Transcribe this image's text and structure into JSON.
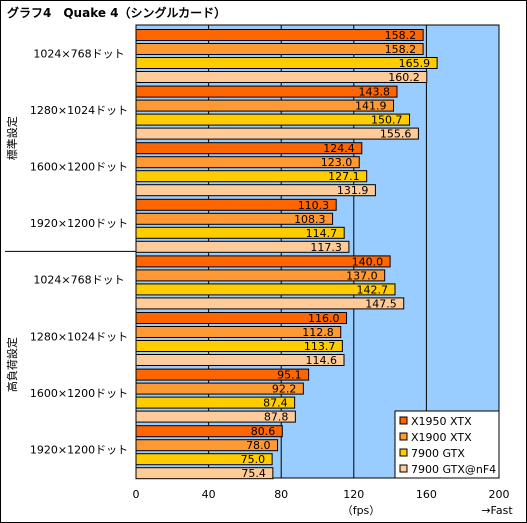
{
  "chart_data": {
    "type": "bar",
    "orientation": "horizontal",
    "title": "グラフ4　Quake 4（シングルカード）",
    "groups": [
      {
        "label": "標準設定",
        "categories": [
          "1024×768ドット",
          "1280×1024ドット",
          "1600×1200ドット",
          "1920×1200ドット"
        ],
        "series_values": [
          [
            158.2,
            158.2,
            165.9,
            160.2
          ],
          [
            143.8,
            141.9,
            150.7,
            155.6
          ],
          [
            124.4,
            123.0,
            127.1,
            131.9
          ],
          [
            110.3,
            108.3,
            114.7,
            117.3
          ]
        ],
        "value_labels": [
          [
            "158.2",
            "158.2",
            "165.9",
            "160.2"
          ],
          [
            "143.8",
            "141.9",
            "150.7",
            "155.6"
          ],
          [
            "124.4",
            "123.0",
            "127.1",
            "131.9"
          ],
          [
            "110.3",
            "108.3",
            "114.7",
            "117.3"
          ]
        ]
      },
      {
        "label": "高負荷設定",
        "categories": [
          "1024×768ドット",
          "1280×1024ドット",
          "1600×1200ドット",
          "1920×1200ドット"
        ],
        "series_values": [
          [
            140.0,
            137.0,
            142.7,
            147.5
          ],
          [
            116.0,
            112.8,
            113.7,
            114.6
          ],
          [
            95.1,
            92.2,
            87.4,
            87.8
          ],
          [
            80.6,
            78.0,
            75.0,
            75.4
          ]
        ],
        "value_labels": [
          [
            "140.0",
            "137.0",
            "142.7",
            "147.5"
          ],
          [
            "116.0",
            "112.8",
            "113.7",
            "114.6"
          ],
          [
            "95.1",
            "92.2",
            "87.4",
            "87.8"
          ],
          [
            "80.6",
            "78.0",
            "75.0",
            "75.4"
          ]
        ]
      }
    ],
    "series": [
      {
        "name": "X1950 XTX",
        "color": "#ff6600"
      },
      {
        "name": "X1900 XTX",
        "color": "#ff9933"
      },
      {
        "name": "7900 GTX",
        "color": "#ffcc00"
      },
      {
        "name": "7900 GTX@nF4",
        "color": "#ffcc99"
      }
    ],
    "xlim": [
      0,
      200
    ],
    "xticks": [
      "0",
      "40",
      "80",
      "120",
      "160",
      "200"
    ],
    "xlabel": "（fps）",
    "x_direction_label": "→Fast",
    "grid": true,
    "legend_position": "bottom-right",
    "plot_background": "#99ccff"
  }
}
